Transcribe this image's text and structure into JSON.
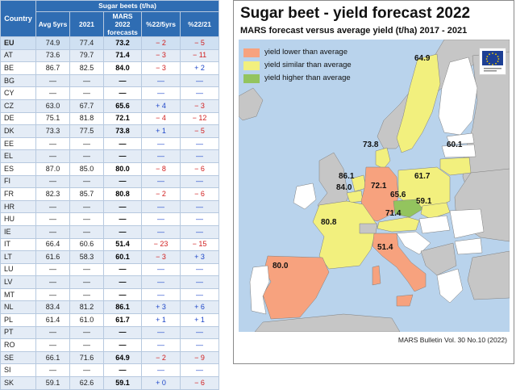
{
  "table": {
    "group_header": "Sugar beets (t/ha)",
    "headers": {
      "country": "Country",
      "avg": "Avg 5yrs",
      "y2021": "2021",
      "forecast_l1": "MARS",
      "forecast_l2": "2022",
      "forecast_l3": "forecasts",
      "d5": "%22/5yrs",
      "d21": "%22/21"
    },
    "rows": [
      {
        "country": "EU",
        "avg": "74.9",
        "y2021": "77.4",
        "forecast": "73.2",
        "d5": "− 2",
        "d5s": "neg",
        "d21": "− 5",
        "d21s": "neg"
      },
      {
        "country": "AT",
        "avg": "73.6",
        "y2021": "79.7",
        "forecast": "71.4",
        "d5": "− 3",
        "d5s": "neg",
        "d21": "− 11",
        "d21s": "neg"
      },
      {
        "country": "BE",
        "avg": "86.7",
        "y2021": "82.5",
        "forecast": "84.0",
        "d5": "− 3",
        "d5s": "neg",
        "d21": "+ 2",
        "d21s": "pos"
      },
      {
        "country": "BG",
        "avg": "—",
        "y2021": "—",
        "forecast": "—",
        "d5": "—",
        "d5s": "pos",
        "d21": "—",
        "d21s": "pos"
      },
      {
        "country": "CY",
        "avg": "—",
        "y2021": "—",
        "forecast": "—",
        "d5": "—",
        "d5s": "pos",
        "d21": "—",
        "d21s": "pos"
      },
      {
        "country": "CZ",
        "avg": "63.0",
        "y2021": "67.7",
        "forecast": "65.6",
        "d5": "+ 4",
        "d5s": "pos",
        "d21": "− 3",
        "d21s": "neg"
      },
      {
        "country": "DE",
        "avg": "75.1",
        "y2021": "81.8",
        "forecast": "72.1",
        "d5": "− 4",
        "d5s": "neg",
        "d21": "− 12",
        "d21s": "neg"
      },
      {
        "country": "DK",
        "avg": "73.3",
        "y2021": "77.5",
        "forecast": "73.8",
        "d5": "+ 1",
        "d5s": "pos",
        "d21": "− 5",
        "d21s": "neg"
      },
      {
        "country": "EE",
        "avg": "—",
        "y2021": "—",
        "forecast": "—",
        "d5": "—",
        "d5s": "pos",
        "d21": "—",
        "d21s": "pos"
      },
      {
        "country": "EL",
        "avg": "—",
        "y2021": "—",
        "forecast": "—",
        "d5": "—",
        "d5s": "pos",
        "d21": "—",
        "d21s": "pos"
      },
      {
        "country": "ES",
        "avg": "87.0",
        "y2021": "85.0",
        "forecast": "80.0",
        "d5": "− 8",
        "d5s": "neg",
        "d21": "− 6",
        "d21s": "neg"
      },
      {
        "country": "FI",
        "avg": "—",
        "y2021": "—",
        "forecast": "—",
        "d5": "—",
        "d5s": "pos",
        "d21": "—",
        "d21s": "pos"
      },
      {
        "country": "FR",
        "avg": "82.3",
        "y2021": "85.7",
        "forecast": "80.8",
        "d5": "− 2",
        "d5s": "neg",
        "d21": "− 6",
        "d21s": "neg"
      },
      {
        "country": "HR",
        "avg": "—",
        "y2021": "—",
        "forecast": "—",
        "d5": "—",
        "d5s": "pos",
        "d21": "—",
        "d21s": "pos"
      },
      {
        "country": "HU",
        "avg": "—",
        "y2021": "—",
        "forecast": "—",
        "d5": "—",
        "d5s": "pos",
        "d21": "—",
        "d21s": "pos"
      },
      {
        "country": "IE",
        "avg": "—",
        "y2021": "—",
        "forecast": "—",
        "d5": "—",
        "d5s": "pos",
        "d21": "—",
        "d21s": "pos"
      },
      {
        "country": "IT",
        "avg": "66.4",
        "y2021": "60.6",
        "forecast": "51.4",
        "d5": "− 23",
        "d5s": "neg",
        "d21": "− 15",
        "d21s": "neg"
      },
      {
        "country": "LT",
        "avg": "61.6",
        "y2021": "58.3",
        "forecast": "60.1",
        "d5": "− 3",
        "d5s": "neg",
        "d21": "+ 3",
        "d21s": "pos"
      },
      {
        "country": "LU",
        "avg": "—",
        "y2021": "—",
        "forecast": "—",
        "d5": "—",
        "d5s": "pos",
        "d21": "—",
        "d21s": "pos"
      },
      {
        "country": "LV",
        "avg": "—",
        "y2021": "—",
        "forecast": "—",
        "d5": "—",
        "d5s": "pos",
        "d21": "—",
        "d21s": "pos"
      },
      {
        "country": "MT",
        "avg": "—",
        "y2021": "—",
        "forecast": "—",
        "d5": "—",
        "d5s": "pos",
        "d21": "—",
        "d21s": "pos"
      },
      {
        "country": "NL",
        "avg": "83.4",
        "y2021": "81.2",
        "forecast": "86.1",
        "d5": "+ 3",
        "d5s": "pos",
        "d21": "+ 6",
        "d21s": "pos"
      },
      {
        "country": "PL",
        "avg": "61.4",
        "y2021": "61.0",
        "forecast": "61.7",
        "d5": "+ 1",
        "d5s": "pos",
        "d21": "+ 1",
        "d21s": "pos"
      },
      {
        "country": "PT",
        "avg": "—",
        "y2021": "—",
        "forecast": "—",
        "d5": "—",
        "d5s": "pos",
        "d21": "—",
        "d21s": "pos"
      },
      {
        "country": "RO",
        "avg": "—",
        "y2021": "—",
        "forecast": "—",
        "d5": "—",
        "d5s": "pos",
        "d21": "—",
        "d21s": "pos"
      },
      {
        "country": "SE",
        "avg": "66.1",
        "y2021": "71.6",
        "forecast": "64.9",
        "d5": "− 2",
        "d5s": "neg",
        "d21": "− 9",
        "d21s": "neg"
      },
      {
        "country": "SI",
        "avg": "—",
        "y2021": "—",
        "forecast": "—",
        "d5": "—",
        "d5s": "pos",
        "d21": "—",
        "d21s": "pos"
      },
      {
        "country": "SK",
        "avg": "59.1",
        "y2021": "62.6",
        "forecast": "59.1",
        "d5": "+ 0",
        "d5s": "pos",
        "d21": "− 6",
        "d21s": "neg"
      }
    ]
  },
  "map": {
    "title": "Sugar beet - yield forecast 2022",
    "subtitle": "MARS forecast versus average yield (t/ha) 2017 - 2021",
    "footer": "MARS Bulletin Vol. 30 No.10 (2022)",
    "colors": {
      "sea": "#b9d3ec",
      "land": "#c6c6c6",
      "lower": "#f7a27e",
      "similar": "#f2f07e",
      "higher": "#93c45e",
      "border": "#7f7f7f"
    },
    "legend": [
      {
        "label": "yield lower than average",
        "color": "#f7a27e"
      },
      {
        "label": "yield similar than average",
        "color": "#f2f07e"
      },
      {
        "label": "yield higher than average",
        "color": "#93c45e"
      }
    ],
    "values": {
      "SE": "64.9",
      "DK": "73.8",
      "LT": "60.1",
      "NL": "86.1",
      "BE": "84.0",
      "DE": "72.1",
      "PL": "61.7",
      "CZ": "65.6",
      "SK": "59.1",
      "AT": "71.4",
      "FR": "80.8",
      "IT": "51.4",
      "ES": "80.0"
    }
  },
  "chart_data": {
    "type": "table",
    "title": "Sugar beets (t/ha)",
    "columns": [
      "Country",
      "Avg 5yrs",
      "2021",
      "MARS 2022 forecasts",
      "%22/5yrs",
      "%22/21"
    ],
    "rows": [
      [
        "EU",
        74.9,
        77.4,
        73.2,
        -2,
        -5
      ],
      [
        "AT",
        73.6,
        79.7,
        71.4,
        -3,
        -11
      ],
      [
        "BE",
        86.7,
        82.5,
        84.0,
        -3,
        2
      ],
      [
        "BG",
        null,
        null,
        null,
        null,
        null
      ],
      [
        "CY",
        null,
        null,
        null,
        null,
        null
      ],
      [
        "CZ",
        63.0,
        67.7,
        65.6,
        4,
        -3
      ],
      [
        "DE",
        75.1,
        81.8,
        72.1,
        -4,
        -12
      ],
      [
        "DK",
        73.3,
        77.5,
        73.8,
        1,
        -5
      ],
      [
        "EE",
        null,
        null,
        null,
        null,
        null
      ],
      [
        "EL",
        null,
        null,
        null,
        null,
        null
      ],
      [
        "ES",
        87.0,
        85.0,
        80.0,
        -8,
        -6
      ],
      [
        "FI",
        null,
        null,
        null,
        null,
        null
      ],
      [
        "FR",
        82.3,
        85.7,
        80.8,
        -2,
        -6
      ],
      [
        "HR",
        null,
        null,
        null,
        null,
        null
      ],
      [
        "HU",
        null,
        null,
        null,
        null,
        null
      ],
      [
        "IE",
        null,
        null,
        null,
        null,
        null
      ],
      [
        "IT",
        66.4,
        60.6,
        51.4,
        -23,
        -15
      ],
      [
        "LT",
        61.6,
        58.3,
        60.1,
        -3,
        3
      ],
      [
        "LU",
        null,
        null,
        null,
        null,
        null
      ],
      [
        "LV",
        null,
        null,
        null,
        null,
        null
      ],
      [
        "MT",
        null,
        null,
        null,
        null,
        null
      ],
      [
        "NL",
        83.4,
        81.2,
        86.1,
        3,
        6
      ],
      [
        "PL",
        61.4,
        61.0,
        61.7,
        1,
        1
      ],
      [
        "PT",
        null,
        null,
        null,
        null,
        null
      ],
      [
        "RO",
        null,
        null,
        null,
        null,
        null
      ],
      [
        "SE",
        66.1,
        71.6,
        64.9,
        -2,
        -9
      ],
      [
        "SI",
        null,
        null,
        null,
        null,
        null
      ],
      [
        "SK",
        59.1,
        62.6,
        59.1,
        0,
        -6
      ]
    ]
  }
}
